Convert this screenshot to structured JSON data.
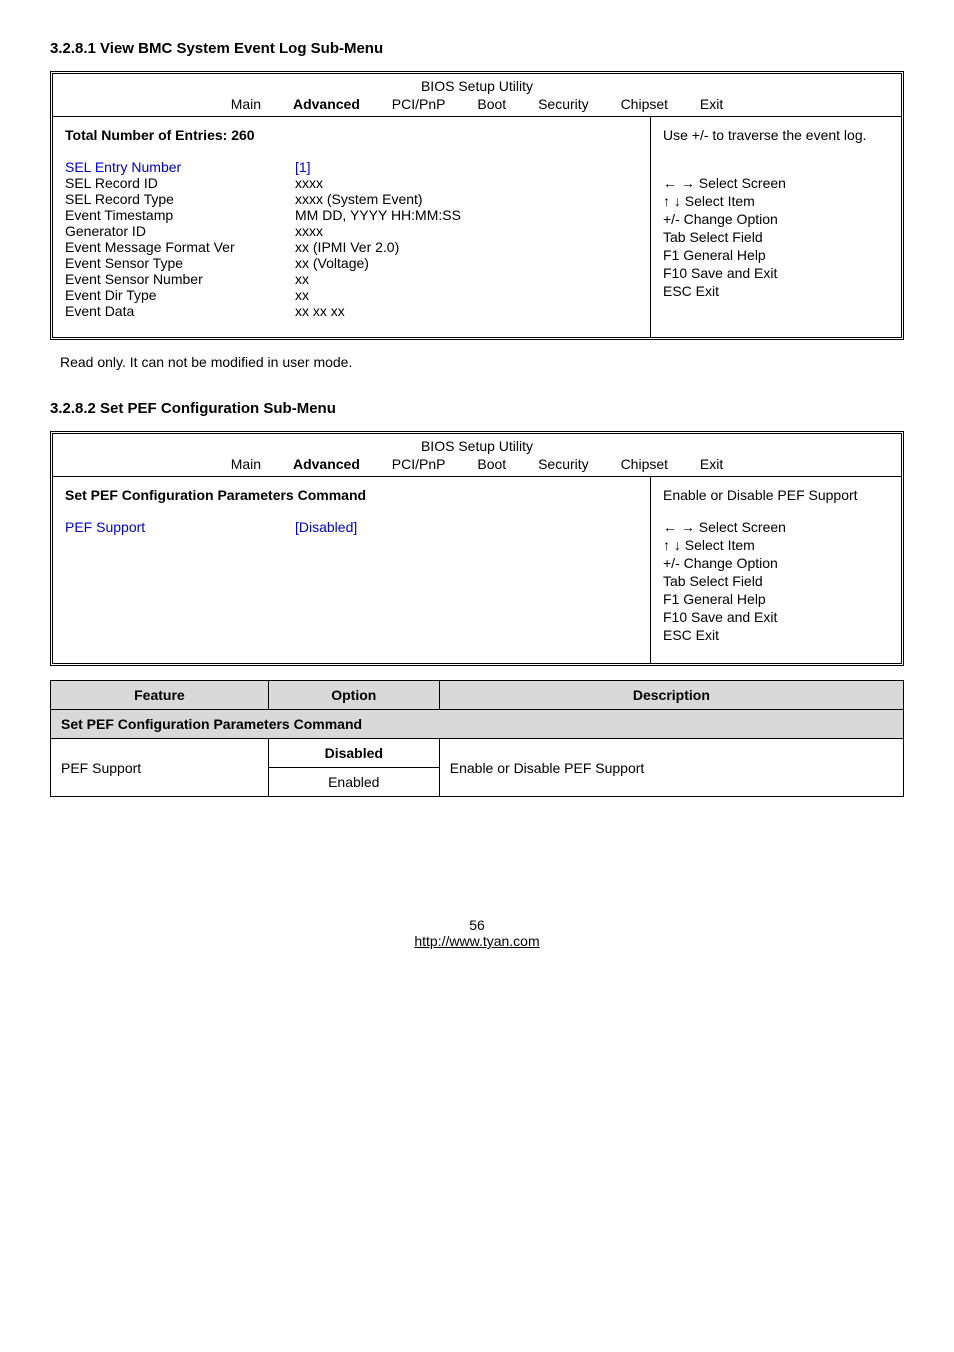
{
  "section1": {
    "heading": "3.2.8.1 View BMC System Event Log Sub-Menu",
    "bios_title": "BIOS Setup Utility",
    "tabs": [
      "Main",
      "Advanced",
      "PCI/PnP",
      "Boot",
      "Security",
      "Chipset",
      "Exit"
    ],
    "active_tab_index": 1,
    "left_title": "Total Number of Entries: 260",
    "rows": [
      {
        "label": "SEL Entry Number",
        "label_class": "blue",
        "value": "[1]",
        "value_class": "blue"
      },
      {
        "label": "SEL Record ID",
        "value": "xxxx"
      },
      {
        "label": "SEL Record Type",
        "value": "xxxx (System Event)"
      },
      {
        "label": "Event Timestamp",
        "value": "MM DD, YYYY HH:MM:SS"
      },
      {
        "label": "Generator ID",
        "value": "xxxx"
      },
      {
        "label": "Event Message Format Ver",
        "value": "xx (IPMI Ver 2.0)"
      },
      {
        "label": "Event Sensor Type",
        "value": "xx (Voltage)"
      },
      {
        "label": "Event Sensor Number",
        "value": "xx"
      },
      {
        "label": "Event Dir Type",
        "value": "xx"
      },
      {
        "label": "Event Data",
        "value": "xx xx xx"
      }
    ],
    "right_top": "Use +/- to traverse the event log.",
    "help": [
      "← → Select Screen",
      "↑ ↓  Select Item",
      "+/-    Change Option",
      "Tab   Select Field",
      "F1     General Help",
      "F10   Save and Exit",
      "ESC  Exit"
    ],
    "note": "Read only.  It can not be modified in user mode."
  },
  "section2": {
    "heading": "3.2.8.2 Set PEF Configuration Sub-Menu",
    "bios_title": "BIOS Setup Utility",
    "tabs": [
      "Main",
      "Advanced",
      "PCI/PnP",
      "Boot",
      "Security",
      "Chipset",
      "Exit"
    ],
    "active_tab_index": 1,
    "left_title": "Set PEF Configuration Parameters Command",
    "rows": [
      {
        "label": "PEF Support",
        "label_class": "blue",
        "value": "[Disabled]",
        "value_class": "blue"
      }
    ],
    "right_top": "Enable or Disable PEF Support",
    "help": [
      "← → Select Screen",
      "↑ ↓  Select Item",
      "+/-    Change Option",
      "Tab   Select Field",
      "F1     General Help",
      "F10   Save and Exit",
      "ESC  Exit"
    ]
  },
  "option_table": {
    "headers": [
      "Feature",
      "Option",
      "Description"
    ],
    "section_header": "Set PEF Configuration Parameters Command",
    "feature": "PEF Support",
    "options": [
      "Disabled",
      "Enabled"
    ],
    "description": "Enable or Disable PEF Support"
  },
  "footer": {
    "page": "56",
    "url": "http://www.tyan.com"
  }
}
